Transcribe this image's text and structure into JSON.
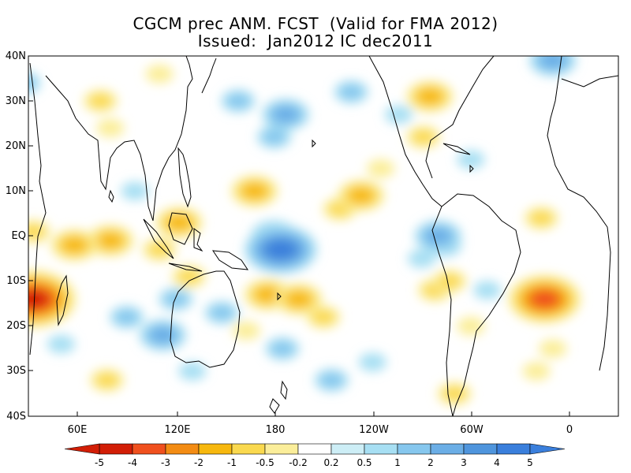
{
  "title": {
    "line1": "CGCM prec ANM. FCST  (Valid for FMA 2012)",
    "line2": "Issued:  Jan2012 IC dec2011"
  },
  "y_labels": [
    "40N",
    "30N",
    "20N",
    "10N",
    "EQ",
    "10S",
    "20S",
    "30S",
    "40S"
  ],
  "x_labels": [
    "60E",
    "120E",
    "180",
    "120W",
    "60W",
    "0"
  ],
  "colorbar": {
    "labels": [
      "-5",
      "-4",
      "-3",
      "-2",
      "-1",
      "-0.5",
      "-0.2",
      "0.2",
      "0.5",
      "1",
      "2",
      "3",
      "4",
      "5"
    ],
    "colors": [
      "#d21e06",
      "#f0501e",
      "#f38c14",
      "#f7b80e",
      "#fad94f",
      "#fbee9a",
      "#ffffff",
      "#cdeef6",
      "#a7dff3",
      "#86c7ee",
      "#6baee6",
      "#4f95dd",
      "#3a7fdc"
    ]
  },
  "anomalies": [
    {
      "lon": 80,
      "lat": -1,
      "v": -2
    },
    {
      "lon": 58,
      "lat": -2,
      "v": -2
    },
    {
      "lon": 65,
      "lat": -2,
      "v": -1
    },
    {
      "lon": 33,
      "lat": -14,
      "v": -5
    },
    {
      "lon": 34,
      "lat": -12,
      "v": -3
    },
    {
      "lon": 33,
      "lat": 1,
      "v": -1
    },
    {
      "lon": 74,
      "lat": 30,
      "v": -1
    },
    {
      "lon": 122,
      "lat": 3,
      "v": -2
    },
    {
      "lon": 110,
      "lat": -3,
      "v": -1
    },
    {
      "lon": 128,
      "lat": -9,
      "v": -1
    },
    {
      "lon": 80,
      "lat": 24,
      "v": -0.5
    },
    {
      "lon": 78,
      "lat": -32,
      "v": -1
    },
    {
      "lon": 110,
      "lat": 36,
      "v": -0.5
    },
    {
      "lon": 168,
      "lat": 10,
      "v": -2
    },
    {
      "lon": 176,
      "lat": -13,
      "v": -2
    },
    {
      "lon": 195,
      "lat": -14,
      "v": -2
    },
    {
      "lon": 210,
      "lat": -18,
      "v": -1
    },
    {
      "lon": 163,
      "lat": -21,
      "v": -0.5
    },
    {
      "lon": 233,
      "lat": 9,
      "v": -2
    },
    {
      "lon": 220,
      "lat": 6,
      "v": -1
    },
    {
      "lon": 245,
      "lat": 15,
      "v": -0.5
    },
    {
      "lon": 275,
      "lat": 31,
      "v": -2
    },
    {
      "lon": 271,
      "lat": 22,
      "v": -1
    },
    {
      "lon": 278,
      "lat": -12,
      "v": -1
    },
    {
      "lon": 287,
      "lat": -10,
      "v": -1
    },
    {
      "lon": 290,
      "lat": -35,
      "v": -1
    },
    {
      "lon": 300,
      "lat": -20,
      "v": -0.5
    },
    {
      "lon": 345,
      "lat": -14,
      "v": -4
    },
    {
      "lon": 343,
      "lat": 4,
      "v": -1
    },
    {
      "lon": 350,
      "lat": -25,
      "v": -0.5
    },
    {
      "lon": 340,
      "lat": -30,
      "v": -0.5
    },
    {
      "lon": 184,
      "lat": -3,
      "v": 4
    },
    {
      "lon": 180,
      "lat": 0,
      "v": 2
    },
    {
      "lon": 187,
      "lat": 27,
      "v": 2
    },
    {
      "lon": 180,
      "lat": 22,
      "v": 1
    },
    {
      "lon": 158,
      "lat": 30,
      "v": 1
    },
    {
      "lon": 112,
      "lat": -22,
      "v": 2
    },
    {
      "lon": 90,
      "lat": -18,
      "v": 1
    },
    {
      "lon": 120,
      "lat": -14,
      "v": 1
    },
    {
      "lon": 130,
      "lat": -30,
      "v": 0.5
    },
    {
      "lon": 148,
      "lat": -17,
      "v": 1
    },
    {
      "lon": 185,
      "lat": -25,
      "v": 1
    },
    {
      "lon": 215,
      "lat": -32,
      "v": 1
    },
    {
      "lon": 240,
      "lat": -28,
      "v": 0.5
    },
    {
      "lon": 227,
      "lat": 32,
      "v": 1
    },
    {
      "lon": 256,
      "lat": 27,
      "v": 0.5
    },
    {
      "lon": 280,
      "lat": 0,
      "v": 2
    },
    {
      "lon": 284,
      "lat": -2,
      "v": 1
    },
    {
      "lon": 270,
      "lat": -5,
      "v": 0.5
    },
    {
      "lon": 27,
      "lat": 34,
      "v": 1
    },
    {
      "lon": 50,
      "lat": -24,
      "v": 0.5
    },
    {
      "lon": 350,
      "lat": 39,
      "v": 2
    },
    {
      "lon": 300,
      "lat": 17,
      "v": 0.5
    },
    {
      "lon": 310,
      "lat": -12,
      "v": 0.5
    },
    {
      "lon": 95,
      "lat": 10,
      "v": 0.5
    }
  ]
}
